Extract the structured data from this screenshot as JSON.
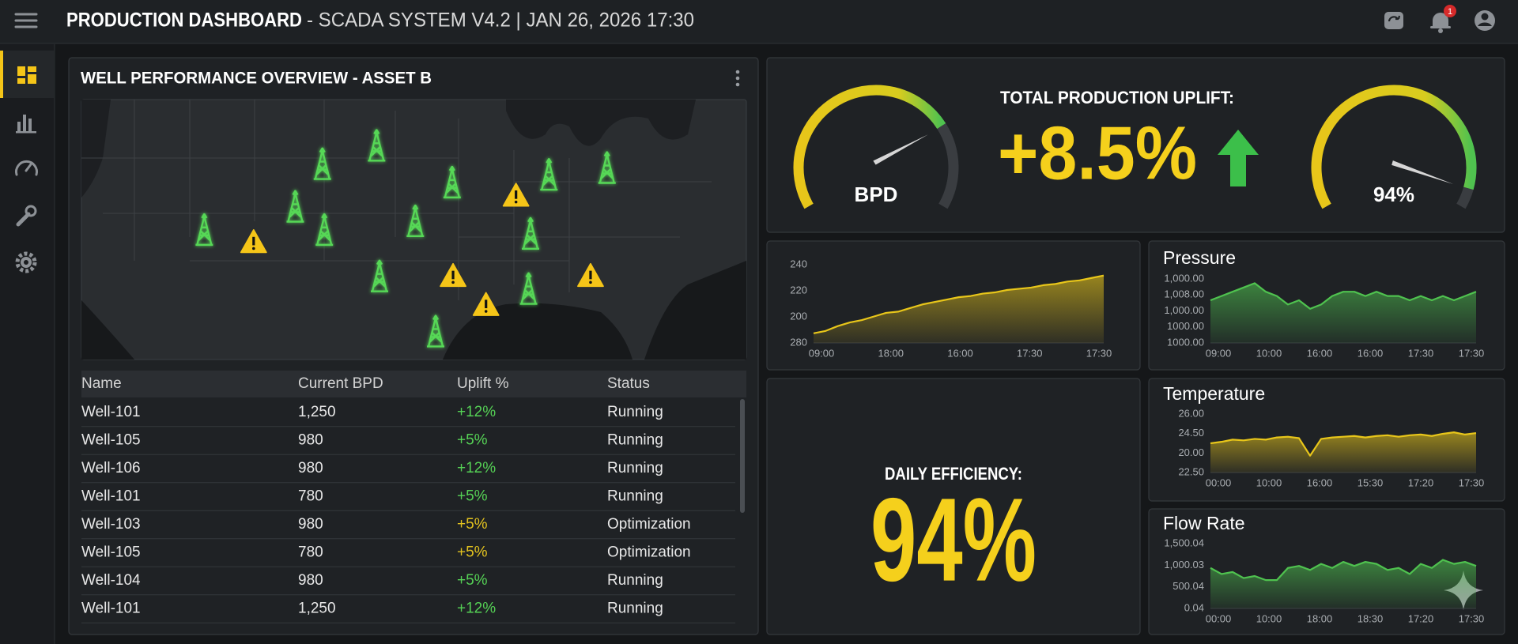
{
  "header": {
    "title": "PRODUCTION DASHBOARD",
    "subtitle": "- SCADA SYSTEM V4.2 | JAN 26, 2026 17:30",
    "notifications": "1"
  },
  "panel_title": "WELL PERFORMANCE OVERVIEW - ASSET B",
  "table": {
    "columns": [
      "Name",
      "Current BPD",
      "Uplift %",
      "Status"
    ],
    "rows": [
      [
        "Well-101",
        "1,250",
        "+12%",
        "Running"
      ],
      [
        "Well-105",
        "980",
        "+5%",
        "Running"
      ],
      [
        "Well-106",
        "980",
        "+12%",
        "Running"
      ],
      [
        "Well-101",
        "780",
        "+5%",
        "Running"
      ],
      [
        "Well-103",
        "980",
        "+5%",
        "Optimization"
      ],
      [
        "Well-105",
        "780",
        "+5%",
        "Optimization"
      ],
      [
        "Well-104",
        "980",
        "+5%",
        "Running"
      ],
      [
        "Well-101",
        "1,250",
        "+12%",
        "Running"
      ]
    ]
  },
  "gauges": [
    {
      "label": "BPD",
      "value": 74,
      "range": [
        0,
        100
      ]
    },
    {
      "label": "94%",
      "value": 94,
      "range": [
        0,
        100
      ]
    }
  ],
  "uplift": {
    "label": "TOTAL PRODUCTION UPLIFT:",
    "value": "+8.5%"
  },
  "efficiency": {
    "label": "DAILY EFFICIENCY:",
    "value": "94%"
  },
  "chart_data": [
    {
      "type": "area",
      "color": "#e8c61a",
      "y_labels": [
        "240",
        "220",
        "200",
        "280"
      ],
      "ylim": [
        180,
        245
      ],
      "xtick_labels": [
        "09:00",
        "18:00",
        "16:00",
        "17:30",
        "17:30"
      ],
      "values": [
        188,
        190,
        194,
        197,
        199,
        202,
        205,
        206,
        209,
        212,
        214,
        216,
        218,
        219,
        221,
        222,
        224,
        225,
        226,
        228,
        229,
        231,
        232,
        234,
        236
      ]
    },
    {
      "type": "area",
      "title": "Pressure",
      "color": "#4fc24f",
      "y_labels": [
        "1,000.00",
        "1,008.00",
        "1,000.00",
        "1000.00",
        "1000.00"
      ],
      "ylim": [
        995,
        1010
      ],
      "xtick_labels": [
        "09:00",
        "10:00",
        "16:00",
        "16:00",
        "17:30",
        "17:30"
      ],
      "values": [
        1005,
        1006,
        1007,
        1008,
        1009,
        1007,
        1006,
        1004,
        1005,
        1003,
        1004,
        1006,
        1007,
        1007,
        1006,
        1007,
        1006,
        1006,
        1005,
        1006,
        1005,
        1006,
        1005,
        1006,
        1007
      ]
    },
    {
      "type": "area",
      "title": "Temperature",
      "color": "#e8c61a",
      "y_labels": [
        "26.00",
        "24.50",
        "20.00",
        "22.50"
      ],
      "ylim": [
        20,
        28
      ],
      "xtick_labels": [
        "00:00",
        "10:00",
        "16:00",
        "15:30",
        "17:20",
        "17:30"
      ],
      "values": [
        24,
        24.2,
        24.5,
        24.4,
        24.6,
        24.5,
        24.8,
        24.9,
        24.7,
        22.3,
        24.6,
        24.8,
        24.9,
        25,
        24.8,
        25,
        25.1,
        24.9,
        25.1,
        25.2,
        25,
        25.3,
        25.5,
        25.2,
        25.4
      ]
    },
    {
      "type": "area",
      "title": "Flow Rate",
      "color": "#4fc24f",
      "y_labels": [
        "1,500.04",
        "1,000.03",
        "500.04",
        "0.04"
      ],
      "ylim": [
        0,
        1600
      ],
      "xtick_labels": [
        "00:00",
        "10:00",
        "18:00",
        "18:30",
        "17:20",
        "17:30"
      ],
      "values": [
        1000,
        850,
        900,
        750,
        800,
        700,
        700,
        1000,
        1050,
        950,
        1100,
        1000,
        1150,
        1050,
        1150,
        1100,
        950,
        1000,
        850,
        1100,
        1000,
        1200,
        1100,
        1150,
        1050
      ]
    }
  ]
}
